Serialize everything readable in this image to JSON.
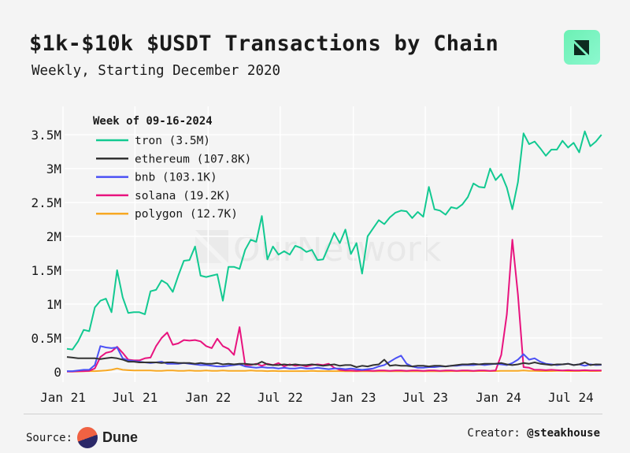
{
  "header": {
    "title": "$1k-$10k $USDT Transactions by Chain",
    "subtitle": "Weekly, Starting December 2020",
    "brand_icon": "ournetwork-logo-icon"
  },
  "watermark": "OurNetwork",
  "footer": {
    "source_label": "Source:",
    "source_name": "Dune",
    "creator_label": "Creator:",
    "creator_name": "@steakhouse"
  },
  "colors": {
    "background": "#f4f4f4",
    "grid": "#ffffff",
    "tron": "#12c991",
    "ethereum": "#333333",
    "bnb": "#4b50f5",
    "solana": "#e8137e",
    "polygon": "#f7a823"
  },
  "chart_data": {
    "type": "line",
    "title": "$1k-$10k $USDT Transactions by Chain",
    "subtitle": "Weekly, Starting December 2020",
    "legend_title": "Week of 09-16-2024",
    "legend_placement": "top-left",
    "grid": true,
    "ylim": [
      0,
      3700000
    ],
    "xlim": [
      "2020-12-28",
      "2024-09-23"
    ],
    "y_ticks": [
      {
        "value": 0,
        "label": "0"
      },
      {
        "value": 500000,
        "label": "0.5M"
      },
      {
        "value": 1000000,
        "label": "1M"
      },
      {
        "value": 1500000,
        "label": "1.5M"
      },
      {
        "value": 2000000,
        "label": "2M"
      },
      {
        "value": 2500000,
        "label": "2.5M"
      },
      {
        "value": 3000000,
        "label": "3M"
      },
      {
        "value": 3500000,
        "label": "3.5M"
      }
    ],
    "x_ticks": [
      {
        "value": "2021-01-01",
        "label": "Jan 21"
      },
      {
        "value": "2021-07-01",
        "label": "Jul 21"
      },
      {
        "value": "2022-01-01",
        "label": "Jan 22"
      },
      {
        "value": "2022-07-01",
        "label": "Jul 22"
      },
      {
        "value": "2023-01-01",
        "label": "Jan 23"
      },
      {
        "value": "2023-07-01",
        "label": "Jul 23"
      },
      {
        "value": "2024-01-01",
        "label": "Jan 24"
      },
      {
        "value": "2024-07-01",
        "label": "Jul 24"
      }
    ],
    "x": [
      "2021-01-11",
      "2021-01-25",
      "2021-02-08",
      "2021-02-22",
      "2021-03-08",
      "2021-03-22",
      "2021-04-05",
      "2021-04-19",
      "2021-05-03",
      "2021-05-17",
      "2021-05-31",
      "2021-06-14",
      "2021-06-28",
      "2021-07-12",
      "2021-07-26",
      "2021-08-09",
      "2021-08-23",
      "2021-09-06",
      "2021-09-20",
      "2021-10-04",
      "2021-10-18",
      "2021-11-01",
      "2021-11-15",
      "2021-11-29",
      "2021-12-13",
      "2021-12-27",
      "2022-01-10",
      "2022-01-24",
      "2022-02-07",
      "2022-02-21",
      "2022-03-07",
      "2022-03-21",
      "2022-04-04",
      "2022-04-18",
      "2022-05-02",
      "2022-05-16",
      "2022-05-30",
      "2022-06-13",
      "2022-06-27",
      "2022-07-11",
      "2022-07-25",
      "2022-08-08",
      "2022-08-22",
      "2022-09-05",
      "2022-09-19",
      "2022-10-03",
      "2022-10-17",
      "2022-10-31",
      "2022-11-14",
      "2022-11-28",
      "2022-12-12",
      "2022-12-26",
      "2023-01-09",
      "2023-01-23",
      "2023-02-06",
      "2023-02-20",
      "2023-03-06",
      "2023-03-20",
      "2023-04-03",
      "2023-04-17",
      "2023-05-01",
      "2023-05-15",
      "2023-05-29",
      "2023-06-12",
      "2023-06-26",
      "2023-07-10",
      "2023-07-24",
      "2023-08-07",
      "2023-08-21",
      "2023-09-04",
      "2023-09-18",
      "2023-10-02",
      "2023-10-16",
      "2023-10-30",
      "2023-11-13",
      "2023-11-27",
      "2023-12-11",
      "2023-12-25",
      "2024-01-08",
      "2024-01-22",
      "2024-02-05",
      "2024-02-19",
      "2024-03-04",
      "2024-03-18",
      "2024-04-01",
      "2024-04-15",
      "2024-04-29",
      "2024-05-13",
      "2024-05-27",
      "2024-06-10",
      "2024-06-24",
      "2024-07-08",
      "2024-07-22",
      "2024-08-05",
      "2024-08-19",
      "2024-09-02",
      "2024-09-16"
    ],
    "series": [
      {
        "name": "tron",
        "legend_label": "tron (3.5M)",
        "color": "#12c991",
        "values": [
          340000,
          330000,
          450000,
          620000,
          600000,
          950000,
          1050000,
          1080000,
          880000,
          1500000,
          1100000,
          870000,
          880000,
          880000,
          850000,
          1190000,
          1210000,
          1350000,
          1300000,
          1180000,
          1420000,
          1640000,
          1650000,
          1850000,
          1420000,
          1400000,
          1420000,
          1440000,
          1050000,
          1550000,
          1550000,
          1520000,
          1800000,
          1950000,
          1920000,
          2300000,
          1660000,
          1850000,
          1730000,
          1780000,
          1730000,
          1860000,
          1830000,
          1770000,
          1800000,
          1650000,
          1660000,
          1850000,
          2050000,
          1900000,
          2100000,
          1740000,
          1900000,
          1450000,
          2000000,
          2120000,
          2240000,
          2180000,
          2280000,
          2350000,
          2380000,
          2370000,
          2270000,
          2360000,
          2290000,
          2730000,
          2400000,
          2380000,
          2320000,
          2430000,
          2410000,
          2470000,
          2580000,
          2780000,
          2730000,
          2720000,
          3000000,
          2830000,
          2920000,
          2720000,
          2400000,
          2800000,
          3520000,
          3360000,
          3400000,
          3300000,
          3190000,
          3280000,
          3280000,
          3410000,
          3310000,
          3380000,
          3240000,
          3550000,
          3330000,
          3400000,
          3500000
        ]
      },
      {
        "name": "ethereum",
        "legend_label": "ethereum (107.8K)",
        "color": "#333333",
        "values": [
          220000,
          210000,
          200000,
          200000,
          200000,
          200000,
          190000,
          200000,
          210000,
          200000,
          180000,
          150000,
          150000,
          140000,
          140000,
          140000,
          140000,
          130000,
          140000,
          140000,
          130000,
          130000,
          130000,
          120000,
          130000,
          120000,
          120000,
          130000,
          110000,
          120000,
          110000,
          120000,
          120000,
          110000,
          110000,
          150000,
          110000,
          100000,
          100000,
          110000,
          100000,
          110000,
          100000,
          100000,
          110000,
          100000,
          90000,
          100000,
          110000,
          90000,
          100000,
          100000,
          70000,
          90000,
          80000,
          100000,
          110000,
          180000,
          90000,
          100000,
          90000,
          90000,
          80000,
          90000,
          90000,
          80000,
          90000,
          90000,
          80000,
          90000,
          100000,
          110000,
          110000,
          120000,
          110000,
          120000,
          120000,
          120000,
          130000,
          110000,
          100000,
          110000,
          130000,
          120000,
          140000,
          120000,
          110000,
          100000,
          110000,
          110000,
          120000,
          100000,
          110000,
          140000,
          100000,
          110000,
          107800
        ]
      },
      {
        "name": "bnb",
        "legend_label": "bnb (103.1K)",
        "color": "#4b50f5",
        "values": [
          10000,
          10000,
          20000,
          30000,
          30000,
          100000,
          380000,
          360000,
          350000,
          360000,
          200000,
          170000,
          160000,
          150000,
          140000,
          130000,
          140000,
          150000,
          120000,
          120000,
          120000,
          130000,
          120000,
          110000,
          100000,
          100000,
          90000,
          80000,
          80000,
          90000,
          100000,
          110000,
          80000,
          70000,
          60000,
          70000,
          60000,
          60000,
          50000,
          60000,
          50000,
          50000,
          60000,
          50000,
          50000,
          60000,
          50000,
          40000,
          50000,
          50000,
          40000,
          50000,
          40000,
          30000,
          40000,
          50000,
          80000,
          100000,
          150000,
          200000,
          240000,
          120000,
          80000,
          60000,
          60000,
          70000,
          70000,
          80000,
          80000,
          90000,
          90000,
          100000,
          100000,
          100000,
          110000,
          100000,
          110000,
          120000,
          110000,
          100000,
          130000,
          180000,
          260000,
          180000,
          200000,
          150000,
          120000,
          110000,
          100000,
          110000,
          120000,
          100000,
          110000,
          90000,
          110000,
          100000,
          103100
        ]
      },
      {
        "name": "solana",
        "legend_label": "solana (19.2K)",
        "color": "#e8137e",
        "values": [
          5000,
          5000,
          10000,
          10000,
          15000,
          50000,
          220000,
          280000,
          300000,
          370000,
          280000,
          180000,
          170000,
          170000,
          200000,
          210000,
          380000,
          500000,
          580000,
          400000,
          420000,
          470000,
          460000,
          470000,
          450000,
          380000,
          350000,
          490000,
          380000,
          340000,
          250000,
          660000,
          100000,
          100000,
          120000,
          90000,
          120000,
          100000,
          130000,
          80000,
          110000,
          90000,
          100000,
          80000,
          100000,
          110000,
          100000,
          120000,
          60000,
          30000,
          20000,
          20000,
          15000,
          20000,
          20000,
          15000,
          20000,
          20000,
          15000,
          20000,
          20000,
          15000,
          20000,
          20000,
          15000,
          20000,
          20000,
          15000,
          20000,
          20000,
          15000,
          20000,
          20000,
          15000,
          20000,
          20000,
          15000,
          20000,
          250000,
          850000,
          1950000,
          1140000,
          70000,
          60000,
          30000,
          30000,
          25000,
          30000,
          25000,
          20000,
          25000,
          20000,
          20000,
          25000,
          20000,
          20000,
          19200
        ]
      },
      {
        "name": "polygon",
        "legend_label": "polygon (12.7K)",
        "color": "#f7a823",
        "values": [
          5000,
          5000,
          5000,
          8000,
          10000,
          10000,
          15000,
          20000,
          30000,
          50000,
          30000,
          25000,
          20000,
          20000,
          20000,
          20000,
          15000,
          15000,
          20000,
          20000,
          15000,
          15000,
          20000,
          15000,
          15000,
          20000,
          15000,
          15000,
          20000,
          15000,
          15000,
          15000,
          15000,
          20000,
          15000,
          15000,
          10000,
          15000,
          10000,
          10000,
          10000,
          10000,
          10000,
          10000,
          15000,
          10000,
          10000,
          10000,
          10000,
          10000,
          8000,
          8000,
          8000,
          8000,
          10000,
          8000,
          8000,
          8000,
          10000,
          8000,
          8000,
          8000,
          8000,
          10000,
          8000,
          8000,
          10000,
          8000,
          8000,
          10000,
          10000,
          10000,
          10000,
          10000,
          12000,
          12000,
          12000,
          12000,
          15000,
          15000,
          15000,
          15000,
          20000,
          15000,
          15000,
          12000,
          12000,
          12000,
          15000,
          15000,
          12000,
          12000,
          12000,
          15000,
          12000,
          12000,
          12700
        ]
      }
    ]
  }
}
